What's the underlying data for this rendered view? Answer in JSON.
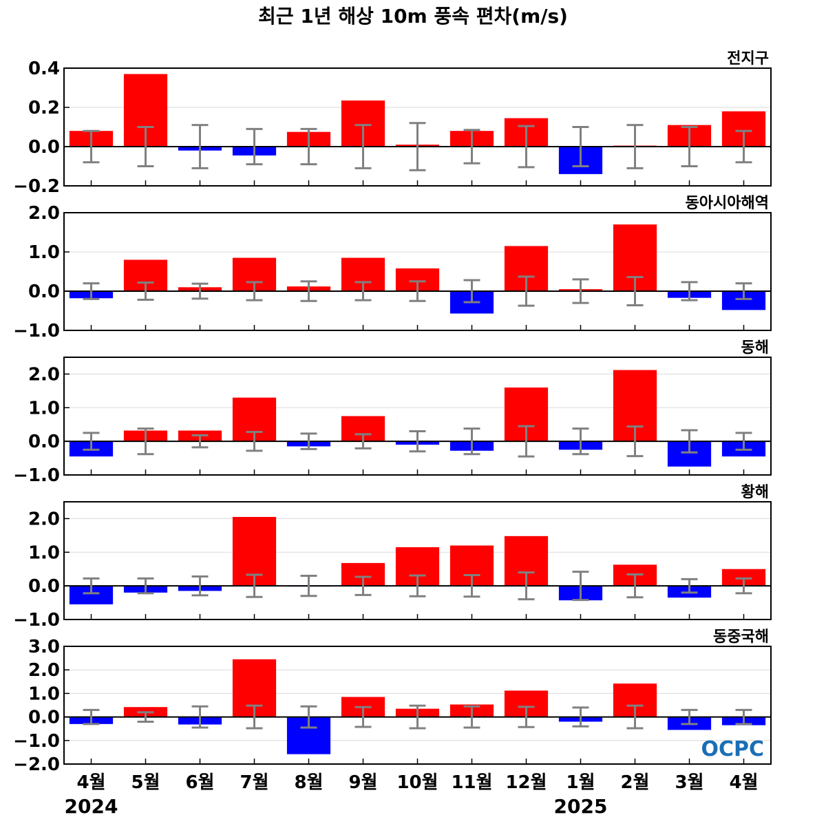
{
  "colors": {
    "positive": "#ff0000",
    "negative": "#0000ff",
    "errorbar": "#808080",
    "grid": "#d9d9d9",
    "logo": "#1a6fb5"
  },
  "logo_text": "OCPC",
  "chart_data": {
    "type": "bar",
    "title": "최근 1년 해상 10m 풍속 편차(m/s)",
    "categories": [
      "4월",
      "5월",
      "6월",
      "7월",
      "8월",
      "9월",
      "10월",
      "11월",
      "12월",
      "1월",
      "2월",
      "3월",
      "4월"
    ],
    "year_labels": [
      {
        "index": 0,
        "label": "2024"
      },
      {
        "index": 9,
        "label": "2025"
      }
    ],
    "panels": [
      {
        "name": "전지구",
        "ylim": [
          -0.2,
          0.4
        ],
        "yticks": [
          -0.2,
          0.0,
          0.2,
          0.4
        ],
        "ytick_labels": [
          "−0.2",
          "0.0",
          "0.2",
          "0.4"
        ],
        "values": [
          0.08,
          0.37,
          -0.02,
          -0.045,
          0.075,
          0.235,
          0.01,
          0.08,
          0.145,
          -0.14,
          0.005,
          0.11,
          0.18
        ],
        "error": [
          0.08,
          0.1,
          0.11,
          0.09,
          0.09,
          0.11,
          0.12,
          0.085,
          0.105,
          0.1,
          0.11,
          0.1,
          0.08
        ]
      },
      {
        "name": "동아시아해역",
        "ylim": [
          -1.0,
          2.0
        ],
        "yticks": [
          -1.0,
          0.0,
          1.0,
          2.0
        ],
        "ytick_labels": [
          "−1.0",
          "0.0",
          "1.0",
          "2.0"
        ],
        "values": [
          -0.18,
          0.8,
          0.1,
          0.85,
          0.12,
          0.85,
          0.58,
          -0.57,
          1.15,
          0.05,
          1.7,
          -0.17,
          -0.48
        ],
        "error": [
          0.2,
          0.22,
          0.19,
          0.23,
          0.25,
          0.23,
          0.25,
          0.28,
          0.37,
          0.3,
          0.36,
          0.23,
          0.2
        ]
      },
      {
        "name": "동해",
        "ylim": [
          -1.0,
          2.5
        ],
        "yticks": [
          -1.0,
          0.0,
          1.0,
          2.0
        ],
        "ytick_labels": [
          "−1.0",
          "0.0",
          "1.0",
          "2.0"
        ],
        "values": [
          -0.45,
          0.32,
          0.32,
          1.3,
          -0.15,
          0.75,
          -0.1,
          -0.28,
          1.6,
          -0.25,
          2.12,
          -0.75,
          -0.45
        ],
        "error": [
          0.25,
          0.38,
          0.18,
          0.28,
          0.23,
          0.21,
          0.3,
          0.38,
          0.45,
          0.38,
          0.44,
          0.33,
          0.25
        ]
      },
      {
        "name": "황해",
        "ylim": [
          -1.0,
          2.5
        ],
        "yticks": [
          -1.0,
          0.0,
          1.0,
          2.0
        ],
        "ytick_labels": [
          "−1.0",
          "0.0",
          "1.0",
          "2.0"
        ],
        "values": [
          -0.55,
          -0.2,
          -0.15,
          2.05,
          -0.02,
          0.68,
          1.15,
          1.2,
          1.48,
          -0.43,
          0.63,
          -0.35,
          0.5
        ],
        "error": [
          0.22,
          0.22,
          0.28,
          0.33,
          0.3,
          0.27,
          0.31,
          0.32,
          0.4,
          0.42,
          0.34,
          0.2,
          0.22
        ]
      },
      {
        "name": "동중국해",
        "ylim": [
          -2.0,
          3.0
        ],
        "yticks": [
          -2.0,
          -1.0,
          0.0,
          1.0,
          2.0,
          3.0
        ],
        "ytick_labels": [
          "−2.0",
          "−1.0",
          "0.0",
          "1.0",
          "2.0",
          "3.0"
        ],
        "values": [
          -0.3,
          0.42,
          -0.32,
          2.45,
          -1.58,
          0.85,
          0.35,
          0.53,
          1.12,
          -0.2,
          1.42,
          -0.55,
          -0.35
        ],
        "error": [
          0.3,
          0.2,
          0.45,
          0.48,
          0.45,
          0.42,
          0.48,
          0.45,
          0.43,
          0.4,
          0.48,
          0.3,
          0.3
        ]
      }
    ]
  }
}
